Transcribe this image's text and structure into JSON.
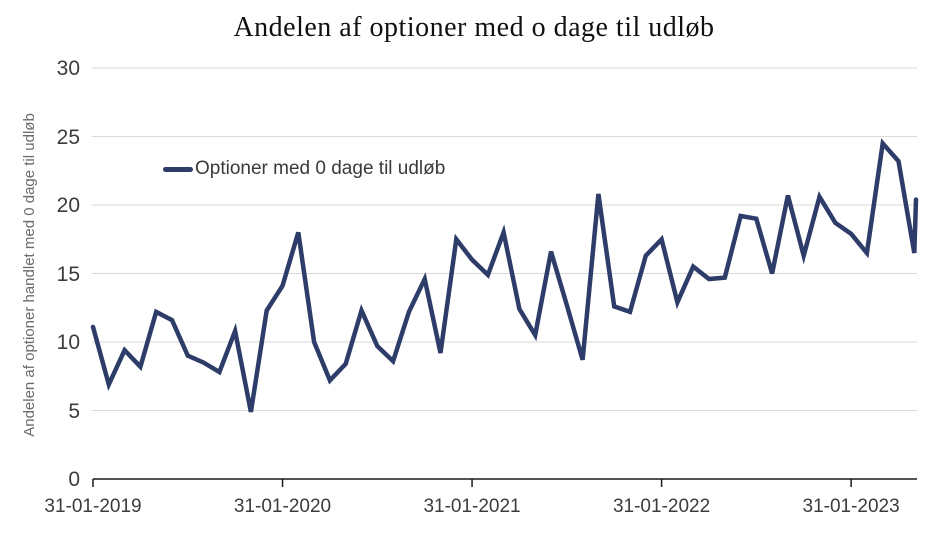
{
  "title": "Andelen af optioner med o dage til udløb",
  "colors": {
    "line": "#2d3c68",
    "grid": "#d9d9d9",
    "axis": "#1a1a1a",
    "tick_text": "#3c3c3c",
    "muted_text": "#6b6b6b",
    "background": "#ffffff"
  },
  "legend": {
    "label": "Optioner med 0 dage til udløb"
  },
  "chart_data": {
    "type": "line",
    "title": "Andelen af optioner med o dage til udløb",
    "xlabel": "",
    "ylabel": "Andelen af optioner handlet med 0 dage til udløb",
    "ylim": [
      0,
      30
    ],
    "yticks": [
      0,
      5,
      10,
      15,
      20,
      25,
      30
    ],
    "xticks": [
      "31-01-2019",
      "31-01-2020",
      "31-01-2021",
      "31-01-2022",
      "31-01-2023"
    ],
    "grid": "horizontal",
    "legend_position": "upper-left-inside",
    "series": [
      {
        "name": "Optioner med 0 dage til udløb",
        "points": [
          {
            "date": "31-01-2019",
            "value": 11.1
          },
          {
            "date": "28-02-2019",
            "value": 6.9
          },
          {
            "date": "31-03-2019",
            "value": 9.4
          },
          {
            "date": "30-04-2019",
            "value": 8.2
          },
          {
            "date": "31-05-2019",
            "value": 12.2
          },
          {
            "date": "30-06-2019",
            "value": 11.6
          },
          {
            "date": "31-07-2019",
            "value": 9.0
          },
          {
            "date": "31-08-2019",
            "value": 8.5
          },
          {
            "date": "30-09-2019",
            "value": 7.8
          },
          {
            "date": "31-10-2019",
            "value": 10.8
          },
          {
            "date": "30-11-2019",
            "value": 4.9
          },
          {
            "date": "31-12-2019",
            "value": 12.3
          },
          {
            "date": "31-01-2020",
            "value": 14.1
          },
          {
            "date": "29-02-2020",
            "value": 18.0
          },
          {
            "date": "31-03-2020",
            "value": 10.0
          },
          {
            "date": "30-04-2020",
            "value": 7.2
          },
          {
            "date": "31-05-2020",
            "value": 8.4
          },
          {
            "date": "30-06-2020",
            "value": 12.3
          },
          {
            "date": "31-07-2020",
            "value": 9.7
          },
          {
            "date": "31-08-2020",
            "value": 8.6
          },
          {
            "date": "30-09-2020",
            "value": 12.2
          },
          {
            "date": "31-10-2020",
            "value": 14.6
          },
          {
            "date": "30-11-2020",
            "value": 9.2
          },
          {
            "date": "31-12-2020",
            "value": 17.5
          },
          {
            "date": "31-01-2021",
            "value": 16.0
          },
          {
            "date": "28-02-2021",
            "value": 14.9
          },
          {
            "date": "31-03-2021",
            "value": 18.0
          },
          {
            "date": "30-04-2021",
            "value": 12.4
          },
          {
            "date": "31-05-2021",
            "value": 10.5
          },
          {
            "date": "30-06-2021",
            "value": 16.6
          },
          {
            "date": "31-07-2021",
            "value": 12.7
          },
          {
            "date": "31-08-2021",
            "value": 8.7
          },
          {
            "date": "30-09-2021",
            "value": 20.8
          },
          {
            "date": "31-10-2021",
            "value": 12.6
          },
          {
            "date": "30-11-2021",
            "value": 12.2
          },
          {
            "date": "31-12-2021",
            "value": 16.3
          },
          {
            "date": "31-01-2022",
            "value": 17.5
          },
          {
            "date": "28-02-2022",
            "value": 12.9
          },
          {
            "date": "31-03-2022",
            "value": 15.5
          },
          {
            "date": "30-04-2022",
            "value": 14.6
          },
          {
            "date": "31-05-2022",
            "value": 14.7
          },
          {
            "date": "30-06-2022",
            "value": 19.2
          },
          {
            "date": "31-07-2022",
            "value": 19.0
          },
          {
            "date": "31-08-2022",
            "value": 15.0
          },
          {
            "date": "30-09-2022",
            "value": 20.7
          },
          {
            "date": "31-10-2022",
            "value": 16.3
          },
          {
            "date": "30-11-2022",
            "value": 20.6
          },
          {
            "date": "31-12-2022",
            "value": 18.7
          },
          {
            "date": "31-01-2023",
            "value": 17.9
          },
          {
            "date": "28-02-2023",
            "value": 16.5
          },
          {
            "date": "31-03-2023",
            "value": 24.5
          },
          {
            "date": "30-04-2023",
            "value": 23.2
          },
          {
            "date": "31-05-2023",
            "value": 16.5
          },
          {
            "date": "09-06-2023",
            "value": 20.4
          }
        ]
      }
    ]
  }
}
